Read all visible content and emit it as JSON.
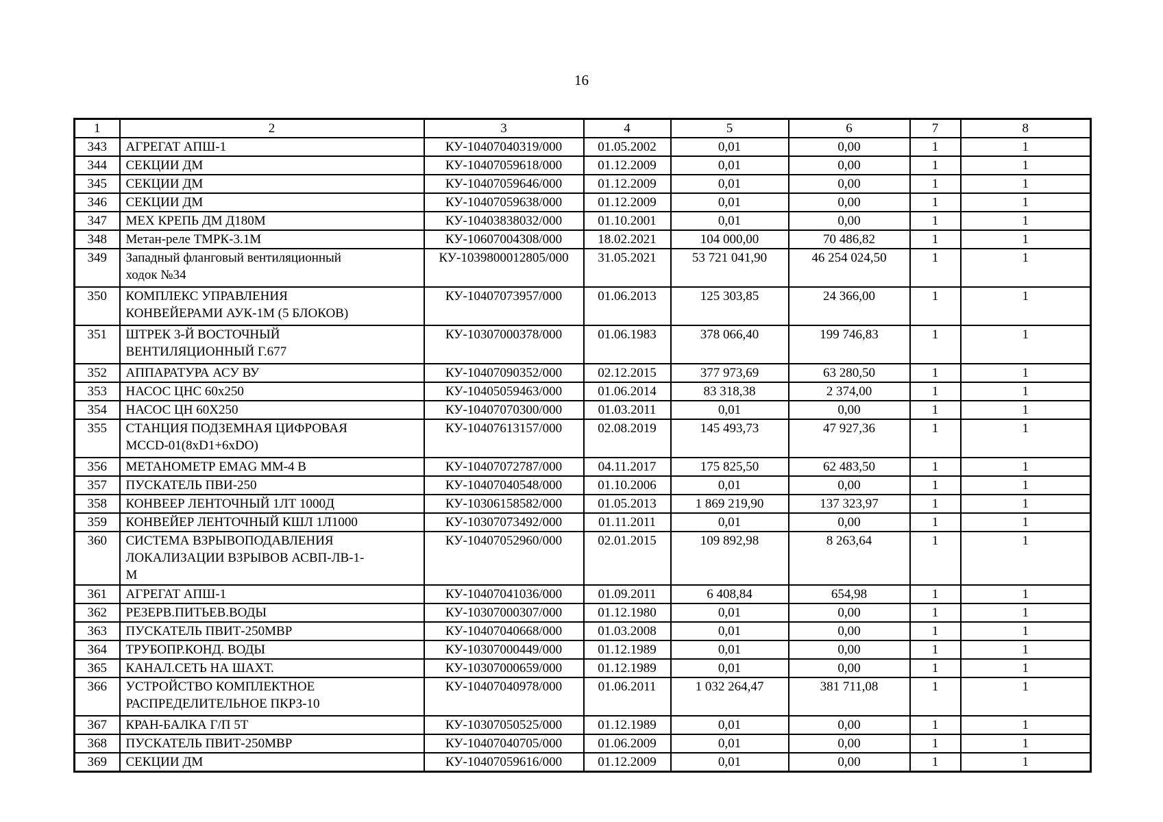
{
  "page": {
    "number": "16"
  },
  "table": {
    "headers": [
      "1",
      "2",
      "3",
      "4",
      "5",
      "6",
      "7",
      "8"
    ],
    "rows": [
      {
        "n": "343",
        "name": "АГРЕГАТ АПШ-1",
        "inv": "КУ-10407040319/000",
        "date": "01.05.2002",
        "cost": "0,01",
        "residual": "0,00",
        "col7": "1",
        "col8": "1"
      },
      {
        "n": "344",
        "name": "СЕКЦИИ ДМ",
        "inv": "КУ-10407059618/000",
        "date": "01.12.2009",
        "cost": "0,01",
        "residual": "0,00",
        "col7": "1",
        "col8": "1"
      },
      {
        "n": "345",
        "name": "СЕКЦИИ ДМ",
        "inv": "КУ-10407059646/000",
        "date": "01.12.2009",
        "cost": "0,01",
        "residual": "0,00",
        "col7": "1",
        "col8": "1"
      },
      {
        "n": "346",
        "name": "СЕКЦИИ ДМ",
        "inv": "КУ-10407059638/000",
        "date": "01.12.2009",
        "cost": "0,01",
        "residual": "0,00",
        "col7": "1",
        "col8": "1"
      },
      {
        "n": "347",
        "name": "МЕХ КРЕПЬ ДМ Д180М",
        "inv": "КУ-10403838032/000",
        "date": "01.10.2001",
        "cost": "0,01",
        "residual": "0,00",
        "col7": "1",
        "col8": "1"
      },
      {
        "n": "348",
        "name": "Метан-реле ТМРК-3.1М",
        "inv": "КУ-10607004308/000",
        "date": "18.02.2021",
        "cost": "104 000,00",
        "residual": "70 486,82",
        "col7": "1",
        "col8": "1"
      },
      {
        "n": "349",
        "name": "Западный фланговый вентиляционный\nходок №34",
        "inv": "КУ-1039800012805/000",
        "date": "31.05.2021",
        "cost": "53 721 041,90",
        "residual": "46 254 024,50",
        "col7": "1",
        "col8": "1"
      },
      {
        "n": "350",
        "name": "КОМПЛЕКС УПРАВЛЕНИЯ\nКОНВЕЙЕРАМИ АУК-1М (5 БЛОКОВ)",
        "inv": "КУ-10407073957/000",
        "date": "01.06.2013",
        "cost": "125 303,85",
        "residual": "24 366,00",
        "col7": "1",
        "col8": "1"
      },
      {
        "n": "351",
        "name": "ШТРЕК 3-Й ВОСТОЧНЫЙ\nВЕНТИЛЯЦИОННЫЙ Г.677",
        "inv": "КУ-10307000378/000",
        "date": "01.06.1983",
        "cost": "378 066,40",
        "residual": "199 746,83",
        "col7": "1",
        "col8": "1"
      },
      {
        "n": "352",
        "name": "АППАРАТУРА АСУ ВУ",
        "inv": "КУ-10407090352/000",
        "date": "02.12.2015",
        "cost": "377 973,69",
        "residual": "63 280,50",
        "col7": "1",
        "col8": "1"
      },
      {
        "n": "353",
        "name": "НАСОС ЦНС 60х250",
        "inv": "КУ-10405059463/000",
        "date": "01.06.2014",
        "cost": "83 318,38",
        "residual": "2 374,00",
        "col7": "1",
        "col8": "1"
      },
      {
        "n": "354",
        "name": "НАСОС ЦН 60Х250",
        "inv": "КУ-10407070300/000",
        "date": "01.03.2011",
        "cost": "0,01",
        "residual": "0,00",
        "col7": "1",
        "col8": "1"
      },
      {
        "n": "355",
        "name": "СТАНЦИЯ ПОДЗЕМНАЯ ЦИФРОВАЯ\nMCCD-01(8xD1+6xDO)",
        "inv": "КУ-10407613157/000",
        "date": "02.08.2019",
        "cost": "145 493,73",
        "residual": "47 927,36",
        "col7": "1",
        "col8": "1"
      },
      {
        "n": "356",
        "name": "МЕТАНОМЕТР EMAG MM-4 B",
        "inv": "КУ-10407072787/000",
        "date": "04.11.2017",
        "cost": "175 825,50",
        "residual": "62 483,50",
        "col7": "1",
        "col8": "1"
      },
      {
        "n": "357",
        "name": "ПУСКАТЕЛЬ ПВИ-250",
        "inv": "КУ-10407040548/000",
        "date": "01.10.2006",
        "cost": "0,01",
        "residual": "0,00",
        "col7": "1",
        "col8": "1"
      },
      {
        "n": "358",
        "name": "КОНВЕЕР ЛЕНТОЧНЫЙ 1ЛТ 1000Д",
        "inv": "КУ-10306158582/000",
        "date": "01.05.2013",
        "cost": "1 869 219,90",
        "residual": "137 323,97",
        "col7": "1",
        "col8": "1"
      },
      {
        "n": "359",
        "name": "КОНВЕЙЕР ЛЕНТОЧНЫЙ КШЛ 1Л1000",
        "inv": "КУ-10307073492/000",
        "date": "01.11.2011",
        "cost": "0,01",
        "residual": "0,00",
        "col7": "1",
        "col8": "1"
      },
      {
        "n": "360",
        "name": "СИСТЕМА ВЗРЫВОПОДАВЛЕНИЯ\nЛОКАЛИЗАЦИИ ВЗРЫВОВ АСВП-ЛВ-1-\nМ",
        "inv": "КУ-10407052960/000",
        "date": "02.01.2015",
        "cost": "109 892,98",
        "residual": "8 263,64",
        "col7": "1",
        "col8": "1"
      },
      {
        "n": "361",
        "name": "АГРЕГАТ АПШ-1",
        "inv": "КУ-10407041036/000",
        "date": "01.09.2011",
        "cost": "6 408,84",
        "residual": "654,98",
        "col7": "1",
        "col8": "1"
      },
      {
        "n": "362",
        "name": "РЕЗЕРВ.ПИТЬЕВ.ВОДЫ",
        "inv": "КУ-10307000307/000",
        "date": "01.12.1980",
        "cost": "0,01",
        "residual": "0,00",
        "col7": "1",
        "col8": "1"
      },
      {
        "n": "363",
        "name": "ПУСКАТЕЛЬ ПВИТ-250МВР",
        "inv": "КУ-10407040668/000",
        "date": "01.03.2008",
        "cost": "0,01",
        "residual": "0,00",
        "col7": "1",
        "col8": "1"
      },
      {
        "n": "364",
        "name": "ТРУБОПР.КОНД. ВОДЫ",
        "inv": "КУ-10307000449/000",
        "date": "01.12.1989",
        "cost": "0,01",
        "residual": "0,00",
        "col7": "1",
        "col8": "1"
      },
      {
        "n": "365",
        "name": "КАНАЛ.СЕТЬ НА ШАХТ.",
        "inv": "КУ-10307000659/000",
        "date": "01.12.1989",
        "cost": "0,01",
        "residual": "0,00",
        "col7": "1",
        "col8": "1"
      },
      {
        "n": "366",
        "name": "УСТРОЙСТВО КОМПЛЕКТНОЕ\nРАСПРЕДЕЛИТЕЛЬНОЕ ПКРЗ-10",
        "inv": "КУ-10407040978/000",
        "date": "01.06.2011",
        "cost": "1 032 264,47",
        "residual": "381 711,08",
        "col7": "1",
        "col8": "1"
      },
      {
        "n": "367",
        "name": "КРАН-БАЛКА Г/П 5Т",
        "inv": "КУ-10307050525/000",
        "date": "01.12.1989",
        "cost": "0,01",
        "residual": "0,00",
        "col7": "1",
        "col8": "1"
      },
      {
        "n": "368",
        "name": "ПУСКАТЕЛЬ ПВИТ-250МВР",
        "inv": "КУ-10407040705/000",
        "date": "01.06.2009",
        "cost": "0,01",
        "residual": "0,00",
        "col7": "1",
        "col8": "1"
      },
      {
        "n": "369",
        "name": "СЕКЦИИ ДМ",
        "inv": "КУ-10407059616/000",
        "date": "01.12.2009",
        "cost": "0,01",
        "residual": "0,00",
        "col7": "1",
        "col8": "1"
      }
    ]
  }
}
